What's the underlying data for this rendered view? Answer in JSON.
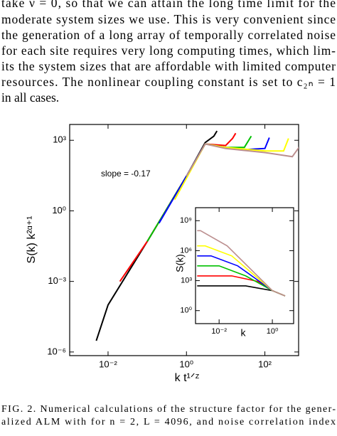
{
  "paragraph": [
    "take ν = 0, so that we can attain the long time limit for the",
    "moderate system sizes we use. This is very convenient since",
    "the generation of a long array of temporally correlated noise",
    "for each site requires very long computing times, which lim-",
    "its the system sizes that are affordable with limited computer",
    "resources. The nonlinear coupling constant is set to c₂ₙ = 1",
    "in all cases."
  ],
  "chart_data": [
    {
      "type": "line",
      "xlabel": "k t¹ᐟᶻ",
      "ylabel": "S(k) k²ᵅ⁺¹",
      "annotation": "slope = -0.17",
      "log_x": true,
      "log_y": true,
      "xlim": [
        0.00105,
        725
      ],
      "ylim": [
        7e-07,
        4700
      ],
      "xticks": [
        {
          "value": 0.01,
          "label": "10⁻²"
        },
        {
          "value": 1,
          "label": "10⁰"
        },
        {
          "value": 100,
          "label": "10²"
        }
      ],
      "yticks": [
        {
          "value": 1e-06,
          "label": "10⁻⁶"
        },
        {
          "value": 0.001,
          "label": "10⁻³"
        },
        {
          "value": 1,
          "label": "10⁰"
        },
        {
          "value": 1000,
          "label": "10³"
        }
      ],
      "series": [
        {
          "color": "#000000",
          "x": [
            0.005,
            0.01,
            0.1,
            1,
            3,
            5,
            6
          ],
          "values": [
            3e-06,
            0.0001,
            0.05,
            30,
            800,
            1500,
            2500
          ]
        },
        {
          "color": "#ff0000",
          "x": [
            0.02,
            0.1,
            1,
            3,
            10,
            15,
            18
          ],
          "values": [
            0.001,
            0.05,
            30,
            700,
            600,
            1200,
            2000
          ]
        },
        {
          "color": "#00c000",
          "x": [
            0.1,
            1,
            3,
            10,
            30,
            45
          ],
          "values": [
            0.05,
            30,
            700,
            500,
            500,
            1500
          ]
        },
        {
          "color": "#0000ff",
          "x": [
            0.2,
            1,
            3,
            10,
            30,
            100,
            130
          ],
          "values": [
            0.3,
            30,
            700,
            500,
            400,
            450,
            1300
          ]
        },
        {
          "color": "#ffff00",
          "x": [
            0.5,
            3,
            10,
            100,
            300,
            400
          ],
          "values": [
            3,
            700,
            500,
            350,
            350,
            1200
          ]
        },
        {
          "color": "#bc8f8f",
          "x": [
            1,
            3,
            10,
            100,
            500,
            1000
          ],
          "values": [
            30,
            700,
            450,
            300,
            200,
            1000
          ]
        }
      ]
    },
    {
      "type": "line",
      "xlabel": "k",
      "ylabel": "S(k)",
      "log_x": true,
      "log_y": true,
      "xlim": [
        0.0013,
        6.3
      ],
      "ylim": [
        0.05,
        20000000000
      ],
      "xticks": [
        {
          "value": 0.01,
          "label": "10⁻²"
        },
        {
          "value": 1,
          "label": "10⁰"
        }
      ],
      "yticks": [
        {
          "value": 1,
          "label": "10⁰"
        },
        {
          "value": 1000,
          "label": "10³"
        },
        {
          "value": 1000000,
          "label": "10⁶"
        },
        {
          "value": 1000000000,
          "label": "10⁹"
        }
      ],
      "series": [
        {
          "color": "#000000",
          "x": [
            0.0015,
            0.1,
            1,
            3
          ],
          "values": [
            300,
            300,
            100,
            30
          ]
        },
        {
          "color": "#ff0000",
          "x": [
            0.0015,
            0.03,
            0.3,
            1,
            3
          ],
          "values": [
            3000,
            3000,
            800,
            100,
            30
          ]
        },
        {
          "color": "#00c000",
          "x": [
            0.0015,
            0.01,
            0.1,
            1,
            3
          ],
          "values": [
            30000,
            30000,
            3000,
            100,
            30
          ]
        },
        {
          "color": "#0000ff",
          "x": [
            0.0015,
            0.005,
            0.05,
            1,
            3
          ],
          "values": [
            300000,
            300000,
            30000,
            100,
            30
          ]
        },
        {
          "color": "#ffff00",
          "x": [
            0.0015,
            0.003,
            0.03,
            1,
            3
          ],
          "values": [
            3000000,
            3000000,
            300000,
            100,
            30
          ]
        },
        {
          "color": "#bc8f8f",
          "x": [
            0.0015,
            0.002,
            0.02,
            1,
            3
          ],
          "values": [
            100000000,
            100000000,
            3000000,
            100,
            30
          ]
        }
      ]
    }
  ],
  "caption": [
    "FIG. 2. Numerical calculations of the structure factor for the gener-",
    "alized ALM with for n = 2, L = 4096, and noise correlation index"
  ]
}
